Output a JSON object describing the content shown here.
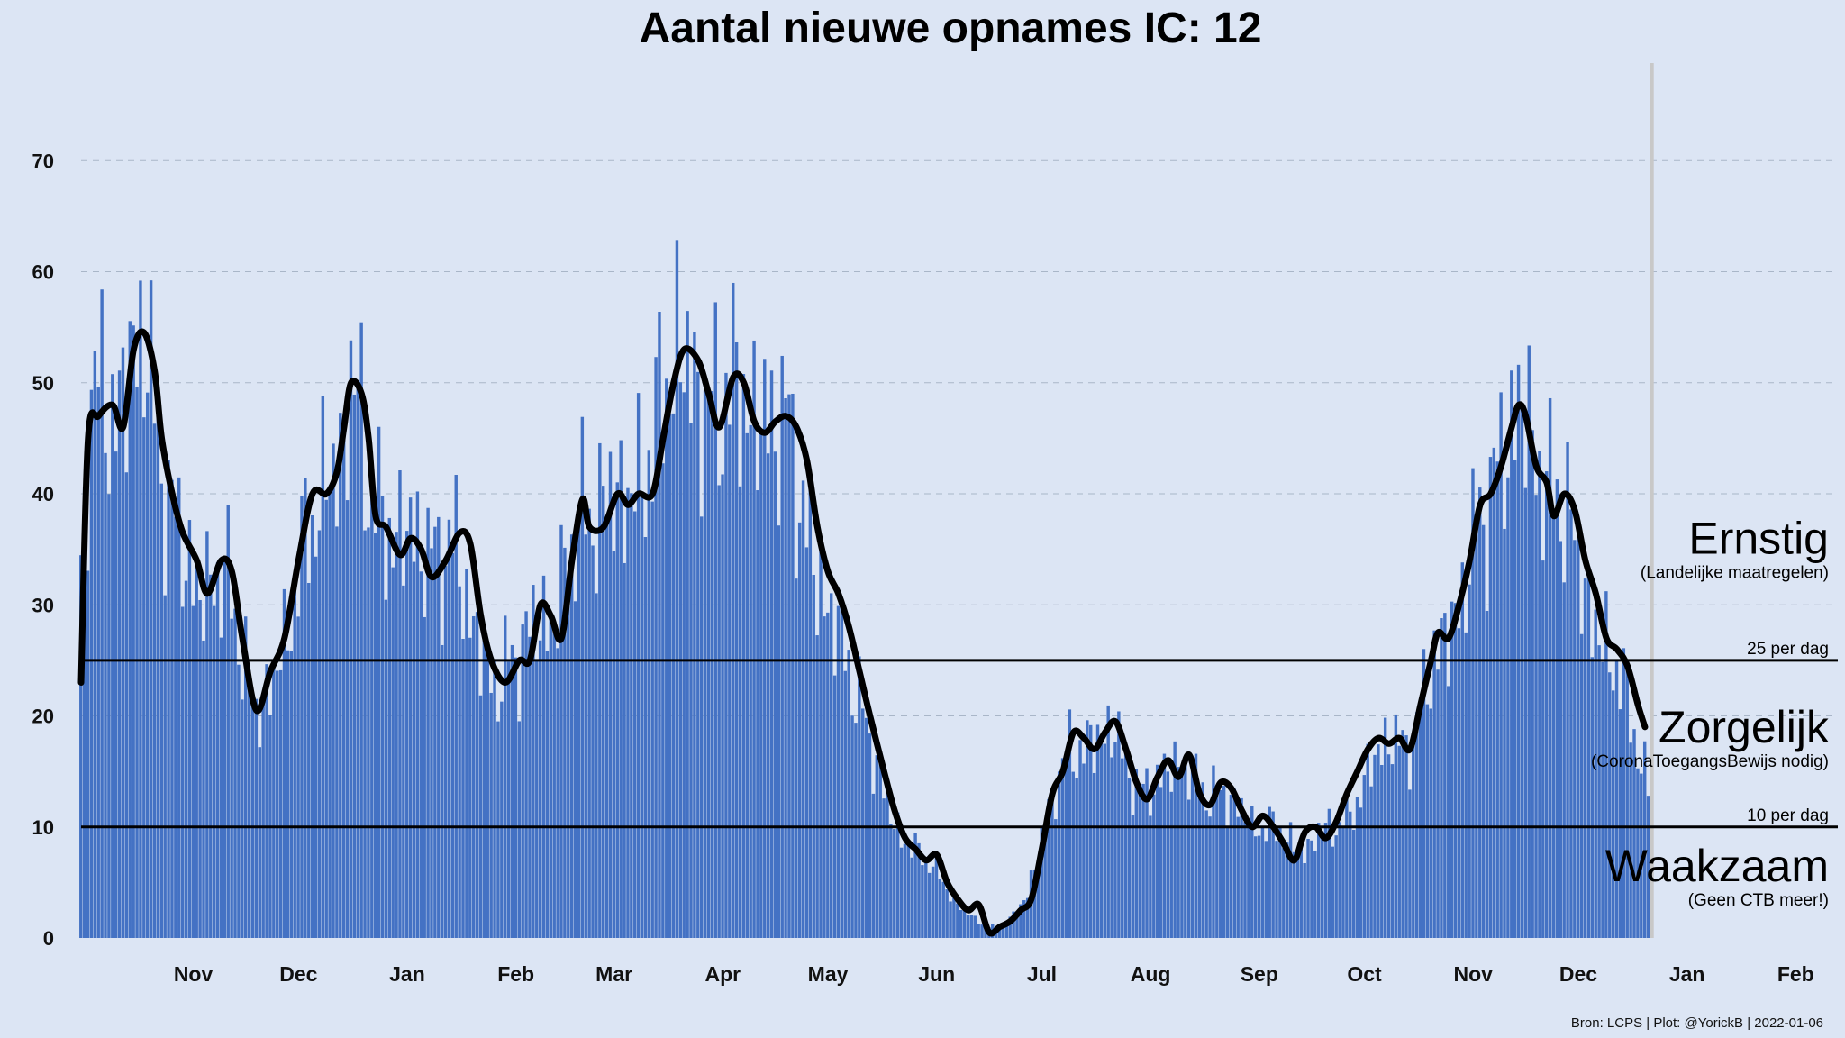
{
  "chart_data": {
    "type": "bar",
    "title": "Aantal nieuwe opnames IC:  12",
    "source": "Bron: LCPS | Plot: @YorickB |  2022-01-06",
    "ylim": [
      0,
      80
    ],
    "yticks": [
      0,
      10,
      20,
      30,
      40,
      50,
      60,
      70
    ],
    "grid": "horizontal dashed",
    "x_range": [
      "2020-10-15",
      "2022-02-28"
    ],
    "xticks": [
      {
        "label": "Nov",
        "date": "2020-11-01"
      },
      {
        "label": "Dec",
        "date": "2020-12-01"
      },
      {
        "label": "Jan",
        "date": "2021-01-01"
      },
      {
        "label": "Feb",
        "date": "2021-02-01"
      },
      {
        "label": "Mar",
        "date": "2021-03-01"
      },
      {
        "label": "Apr",
        "date": "2021-04-01"
      },
      {
        "label": "May",
        "date": "2021-05-01"
      },
      {
        "label": "Jun",
        "date": "2021-06-01"
      },
      {
        "label": "Jul",
        "date": "2021-07-01"
      },
      {
        "label": "Aug",
        "date": "2021-08-01"
      },
      {
        "label": "Sep",
        "date": "2021-09-01"
      },
      {
        "label": "Oct",
        "date": "2021-10-01"
      },
      {
        "label": "Nov",
        "date": "2021-11-01"
      },
      {
        "label": "Dec",
        "date": "2021-12-01"
      },
      {
        "label": "Jan",
        "date": "2022-01-01"
      },
      {
        "label": "Feb",
        "date": "2022-02-01"
      }
    ],
    "current_date_line": "2022-01-06",
    "thresholds": [
      {
        "value": 25,
        "label": "25 per dag"
      },
      {
        "value": 10,
        "label": "10 per dag"
      }
    ],
    "zones": [
      {
        "name": "Ernstig",
        "note": "(Landelijke maatregelen)",
        "y": 33
      },
      {
        "name": "Zorgelijk",
        "note": "(CoronaToegangsBewijs nodig)",
        "y": 16
      },
      {
        "name": "Waakzaam",
        "note": "(Geen CTB meer!)",
        "y": 3.5
      }
    ],
    "series": [
      {
        "kind": "bar",
        "name": "",
        "anchors": [
          [
            "2020-10-15",
            32
          ],
          [
            "2020-10-18",
            50
          ],
          [
            "2020-10-22",
            48
          ],
          [
            "2020-10-26",
            47
          ],
          [
            "2020-10-30",
            53
          ],
          [
            "2020-11-02",
            55
          ],
          [
            "2020-11-06",
            44
          ],
          [
            "2020-11-10",
            38
          ],
          [
            "2020-11-14",
            35
          ],
          [
            "2020-11-18",
            30
          ],
          [
            "2020-11-22",
            33
          ],
          [
            "2020-11-26",
            32
          ],
          [
            "2020-11-30",
            26
          ],
          [
            "2020-12-04",
            20
          ],
          [
            "2020-12-08",
            23
          ],
          [
            "2020-12-12",
            26
          ],
          [
            "2020-12-16",
            33
          ],
          [
            "2020-12-20",
            38
          ],
          [
            "2020-12-24",
            41
          ],
          [
            "2020-12-28",
            43
          ],
          [
            "2020-12-31",
            50
          ],
          [
            "2021-01-03",
            47
          ],
          [
            "2021-01-06",
            39
          ],
          [
            "2021-01-10",
            37
          ],
          [
            "2021-01-14",
            36
          ],
          [
            "2021-01-18",
            37
          ],
          [
            "2021-01-22",
            34
          ],
          [
            "2021-01-26",
            35
          ],
          [
            "2021-01-30",
            35
          ],
          [
            "2021-02-03",
            29
          ],
          [
            "2021-02-07",
            25
          ],
          [
            "2021-02-11",
            23
          ],
          [
            "2021-02-15",
            25
          ],
          [
            "2021-02-19",
            27
          ],
          [
            "2021-02-23",
            29
          ],
          [
            "2021-02-27",
            28
          ],
          [
            "2021-03-03",
            35
          ],
          [
            "2021-03-07",
            38
          ],
          [
            "2021-03-11",
            38
          ],
          [
            "2021-03-15",
            40
          ],
          [
            "2021-03-19",
            40
          ],
          [
            "2021-03-23",
            40
          ],
          [
            "2021-03-27",
            45
          ],
          [
            "2021-03-31",
            50
          ],
          [
            "2021-04-03",
            53
          ],
          [
            "2021-04-07",
            51
          ],
          [
            "2021-04-11",
            47
          ],
          [
            "2021-04-15",
            48
          ],
          [
            "2021-04-19",
            50
          ],
          [
            "2021-04-23",
            48
          ],
          [
            "2021-04-27",
            46
          ],
          [
            "2021-05-01",
            47
          ],
          [
            "2021-05-05",
            46
          ],
          [
            "2021-05-09",
            38
          ],
          [
            "2021-05-13",
            32
          ],
          [
            "2021-05-17",
            29
          ],
          [
            "2021-05-21",
            26
          ],
          [
            "2021-05-25",
            21
          ],
          [
            "2021-05-29",
            17
          ],
          [
            "2021-06-02",
            12
          ],
          [
            "2021-06-06",
            9
          ],
          [
            "2021-06-10",
            8
          ],
          [
            "2021-06-14",
            7
          ],
          [
            "2021-06-18",
            5
          ],
          [
            "2021-06-22",
            3
          ],
          [
            "2021-06-26",
            2
          ],
          [
            "2021-06-30",
            1
          ],
          [
            "2021-07-04",
            1
          ],
          [
            "2021-07-08",
            2
          ],
          [
            "2021-07-12",
            4
          ],
          [
            "2021-07-16",
            9
          ],
          [
            "2021-07-20",
            14
          ],
          [
            "2021-07-24",
            17
          ],
          [
            "2021-07-28",
            17
          ],
          [
            "2021-08-01",
            18
          ],
          [
            "2021-08-05",
            19
          ],
          [
            "2021-08-09",
            16
          ],
          [
            "2021-08-13",
            13
          ],
          [
            "2021-08-17",
            14
          ],
          [
            "2021-08-21",
            15
          ],
          [
            "2021-08-25",
            16
          ],
          [
            "2021-08-29",
            14
          ],
          [
            "2021-09-02",
            13
          ],
          [
            "2021-09-06",
            13
          ],
          [
            "2021-09-10",
            12
          ],
          [
            "2021-09-14",
            10
          ],
          [
            "2021-09-18",
            10
          ],
          [
            "2021-09-22",
            10
          ],
          [
            "2021-09-26",
            8
          ],
          [
            "2021-09-30",
            8
          ],
          [
            "2021-10-04",
            10
          ],
          [
            "2021-10-08",
            10
          ],
          [
            "2021-10-12",
            11
          ],
          [
            "2021-10-16",
            14
          ],
          [
            "2021-10-20",
            17
          ],
          [
            "2021-10-24",
            18
          ],
          [
            "2021-10-28",
            17
          ],
          [
            "2021-11-01",
            20
          ],
          [
            "2021-11-05",
            26
          ],
          [
            "2021-11-09",
            27
          ],
          [
            "2021-11-13",
            31
          ],
          [
            "2021-11-17",
            37
          ],
          [
            "2021-11-21",
            40
          ],
          [
            "2021-11-25",
            44
          ],
          [
            "2021-11-29",
            48
          ],
          [
            "2021-12-03",
            45
          ],
          [
            "2021-12-07",
            40
          ],
          [
            "2021-12-11",
            40
          ],
          [
            "2021-12-15",
            36
          ],
          [
            "2021-12-19",
            30
          ],
          [
            "2021-12-23",
            26
          ],
          [
            "2021-12-27",
            25
          ],
          [
            "2021-12-31",
            20
          ],
          [
            "2022-01-03",
            16
          ],
          [
            "2022-01-06",
            12
          ]
        ]
      },
      {
        "kind": "line",
        "name": "",
        "anchors": [
          [
            "2020-10-15",
            23
          ],
          [
            "2020-10-17",
            45
          ],
          [
            "2020-10-20",
            47
          ],
          [
            "2020-10-24",
            48
          ],
          [
            "2020-10-27",
            46
          ],
          [
            "2020-10-30",
            53
          ],
          [
            "2020-11-02",
            54.5
          ],
          [
            "2020-11-05",
            51
          ],
          [
            "2020-11-07",
            45
          ],
          [
            "2020-11-10",
            40
          ],
          [
            "2020-11-13",
            36.5
          ],
          [
            "2020-11-17",
            34
          ],
          [
            "2020-11-20",
            31
          ],
          [
            "2020-11-24",
            34
          ],
          [
            "2020-11-27",
            33
          ],
          [
            "2020-11-30",
            27
          ],
          [
            "2020-12-04",
            20.5
          ],
          [
            "2020-12-08",
            24
          ],
          [
            "2020-12-12",
            27
          ],
          [
            "2020-12-16",
            34
          ],
          [
            "2020-12-20",
            40
          ],
          [
            "2020-12-24",
            40
          ],
          [
            "2020-12-27",
            42
          ],
          [
            "2020-12-29",
            46
          ],
          [
            "2020-12-31",
            50
          ],
          [
            "2021-01-03",
            49
          ],
          [
            "2021-01-05",
            45
          ],
          [
            "2021-01-07",
            38
          ],
          [
            "2021-01-10",
            37
          ],
          [
            "2021-01-14",
            34.5
          ],
          [
            "2021-01-17",
            36
          ],
          [
            "2021-01-20",
            35
          ],
          [
            "2021-01-23",
            32.5
          ],
          [
            "2021-01-27",
            34
          ],
          [
            "2021-01-31",
            36.5
          ],
          [
            "2021-02-03",
            35.5
          ],
          [
            "2021-02-06",
            29
          ],
          [
            "2021-02-09",
            25
          ],
          [
            "2021-02-13",
            23
          ],
          [
            "2021-02-17",
            25
          ],
          [
            "2021-02-20",
            25
          ],
          [
            "2021-02-23",
            30
          ],
          [
            "2021-02-26",
            29
          ],
          [
            "2021-03-01",
            27
          ],
          [
            "2021-03-04",
            34
          ],
          [
            "2021-03-07",
            39.5
          ],
          [
            "2021-03-09",
            37
          ],
          [
            "2021-03-13",
            37
          ],
          [
            "2021-03-17",
            40
          ],
          [
            "2021-03-20",
            39
          ],
          [
            "2021-03-23",
            40
          ],
          [
            "2021-03-27",
            40
          ],
          [
            "2021-03-30",
            45
          ],
          [
            "2021-04-02",
            50
          ],
          [
            "2021-04-05",
            53
          ],
          [
            "2021-04-09",
            52
          ],
          [
            "2021-04-12",
            49
          ],
          [
            "2021-04-15",
            46
          ],
          [
            "2021-04-19",
            50.5
          ],
          [
            "2021-04-22",
            50
          ],
          [
            "2021-04-25",
            46.5
          ],
          [
            "2021-04-28",
            45.5
          ],
          [
            "2021-05-01",
            46.5
          ],
          [
            "2021-05-04",
            47
          ],
          [
            "2021-05-07",
            46
          ],
          [
            "2021-05-10",
            43
          ],
          [
            "2021-05-13",
            37
          ],
          [
            "2021-05-16",
            33
          ],
          [
            "2021-05-19",
            31
          ],
          [
            "2021-05-22",
            28
          ],
          [
            "2021-05-25",
            24
          ],
          [
            "2021-05-28",
            20
          ],
          [
            "2021-06-01",
            15
          ],
          [
            "2021-06-04",
            11.5
          ],
          [
            "2021-06-07",
            9
          ],
          [
            "2021-06-10",
            8
          ],
          [
            "2021-06-13",
            7
          ],
          [
            "2021-06-16",
            7.5
          ],
          [
            "2021-06-19",
            5
          ],
          [
            "2021-06-22",
            3.5
          ],
          [
            "2021-06-25",
            2.5
          ],
          [
            "2021-06-28",
            3
          ],
          [
            "2021-07-01",
            0.5
          ],
          [
            "2021-07-04",
            1
          ],
          [
            "2021-07-07",
            1.5
          ],
          [
            "2021-07-10",
            2.5
          ],
          [
            "2021-07-13",
            3.5
          ],
          [
            "2021-07-16",
            8
          ],
          [
            "2021-07-19",
            13
          ],
          [
            "2021-07-22",
            15
          ],
          [
            "2021-07-25",
            18.5
          ],
          [
            "2021-07-28",
            18
          ],
          [
            "2021-07-31",
            17
          ],
          [
            "2021-08-03",
            18.5
          ],
          [
            "2021-08-06",
            19.5
          ],
          [
            "2021-08-09",
            17
          ],
          [
            "2021-08-12",
            14
          ],
          [
            "2021-08-15",
            12.5
          ],
          [
            "2021-08-18",
            14.5
          ],
          [
            "2021-08-21",
            16
          ],
          [
            "2021-08-24",
            14.5
          ],
          [
            "2021-08-27",
            16.5
          ],
          [
            "2021-08-30",
            13
          ],
          [
            "2021-09-02",
            12
          ],
          [
            "2021-09-05",
            14
          ],
          [
            "2021-09-08",
            13.5
          ],
          [
            "2021-09-11",
            11.5
          ],
          [
            "2021-09-14",
            10
          ],
          [
            "2021-09-17",
            11
          ],
          [
            "2021-09-20",
            10
          ],
          [
            "2021-09-23",
            8.5
          ],
          [
            "2021-09-26",
            7
          ],
          [
            "2021-09-29",
            9.5
          ],
          [
            "2021-10-02",
            10
          ],
          [
            "2021-10-05",
            9
          ],
          [
            "2021-10-08",
            10.5
          ],
          [
            "2021-10-11",
            13
          ],
          [
            "2021-10-14",
            15
          ],
          [
            "2021-10-17",
            17
          ],
          [
            "2021-10-20",
            18
          ],
          [
            "2021-10-23",
            17.5
          ],
          [
            "2021-10-26",
            18
          ],
          [
            "2021-10-29",
            17
          ],
          [
            "2021-11-01",
            21
          ],
          [
            "2021-11-04",
            25
          ],
          [
            "2021-11-06",
            27.5
          ],
          [
            "2021-11-09",
            27
          ],
          [
            "2021-11-12",
            30
          ],
          [
            "2021-11-15",
            34
          ],
          [
            "2021-11-18",
            39
          ],
          [
            "2021-11-21",
            40
          ],
          [
            "2021-11-24",
            42.5
          ],
          [
            "2021-11-27",
            46
          ],
          [
            "2021-11-29",
            48
          ],
          [
            "2021-12-01",
            47
          ],
          [
            "2021-12-04",
            42.5
          ],
          [
            "2021-12-07",
            41
          ],
          [
            "2021-12-09",
            38
          ],
          [
            "2021-12-12",
            40
          ],
          [
            "2021-12-15",
            38.5
          ],
          [
            "2021-12-18",
            34
          ],
          [
            "2021-12-21",
            31
          ],
          [
            "2021-12-24",
            27
          ],
          [
            "2021-12-27",
            26
          ],
          [
            "2021-12-30",
            24.5
          ],
          [
            "2022-01-02",
            21
          ],
          [
            "2022-01-04",
            19
          ]
        ]
      }
    ]
  }
}
